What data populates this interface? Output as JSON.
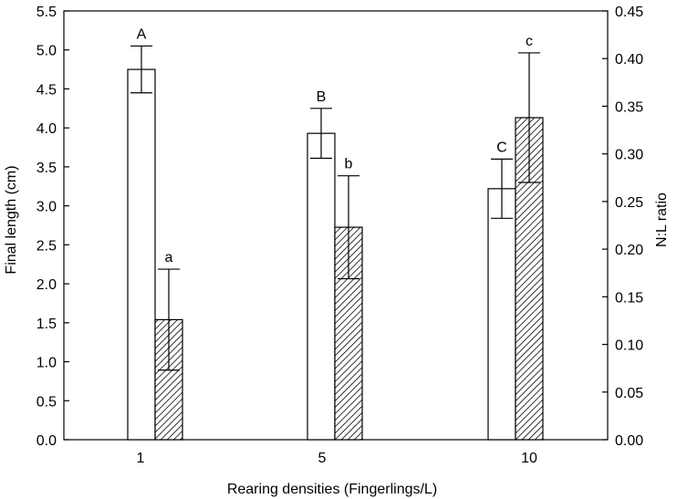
{
  "chart_data": {
    "type": "bar",
    "xlabel": "Rearing densities (Fingerlings/L)",
    "ylabel": "Final length (cm)",
    "y2label": "N:L ratio",
    "categories": [
      "1",
      "5",
      "10"
    ],
    "ylim": [
      0,
      5.5
    ],
    "y2lim": [
      0,
      0.45
    ],
    "yticks": [
      "0.0",
      "0.5",
      "1.0",
      "1.5",
      "2.0",
      "2.5",
      "3.0",
      "3.5",
      "4.0",
      "4.5",
      "5.0",
      "5.5"
    ],
    "y2ticks": [
      "0.00",
      "0.05",
      "0.10",
      "0.15",
      "0.20",
      "0.25",
      "0.30",
      "0.35",
      "0.40",
      "0.45"
    ],
    "series": [
      {
        "axis": "left",
        "fill": "#ffffff",
        "pattern": "none",
        "values": [
          4.75,
          3.93,
          3.22
        ],
        "errors": [
          0.3,
          0.32,
          0.38
        ],
        "labels": [
          "A",
          "B",
          "C"
        ]
      },
      {
        "axis": "right",
        "fill": "#ffffff",
        "pattern": "diagonal-hatch",
        "values": [
          0.126,
          0.223,
          0.338
        ],
        "errors": [
          0.053,
          0.054,
          0.068
        ],
        "labels": [
          "a",
          "b",
          "c"
        ]
      }
    ]
  }
}
